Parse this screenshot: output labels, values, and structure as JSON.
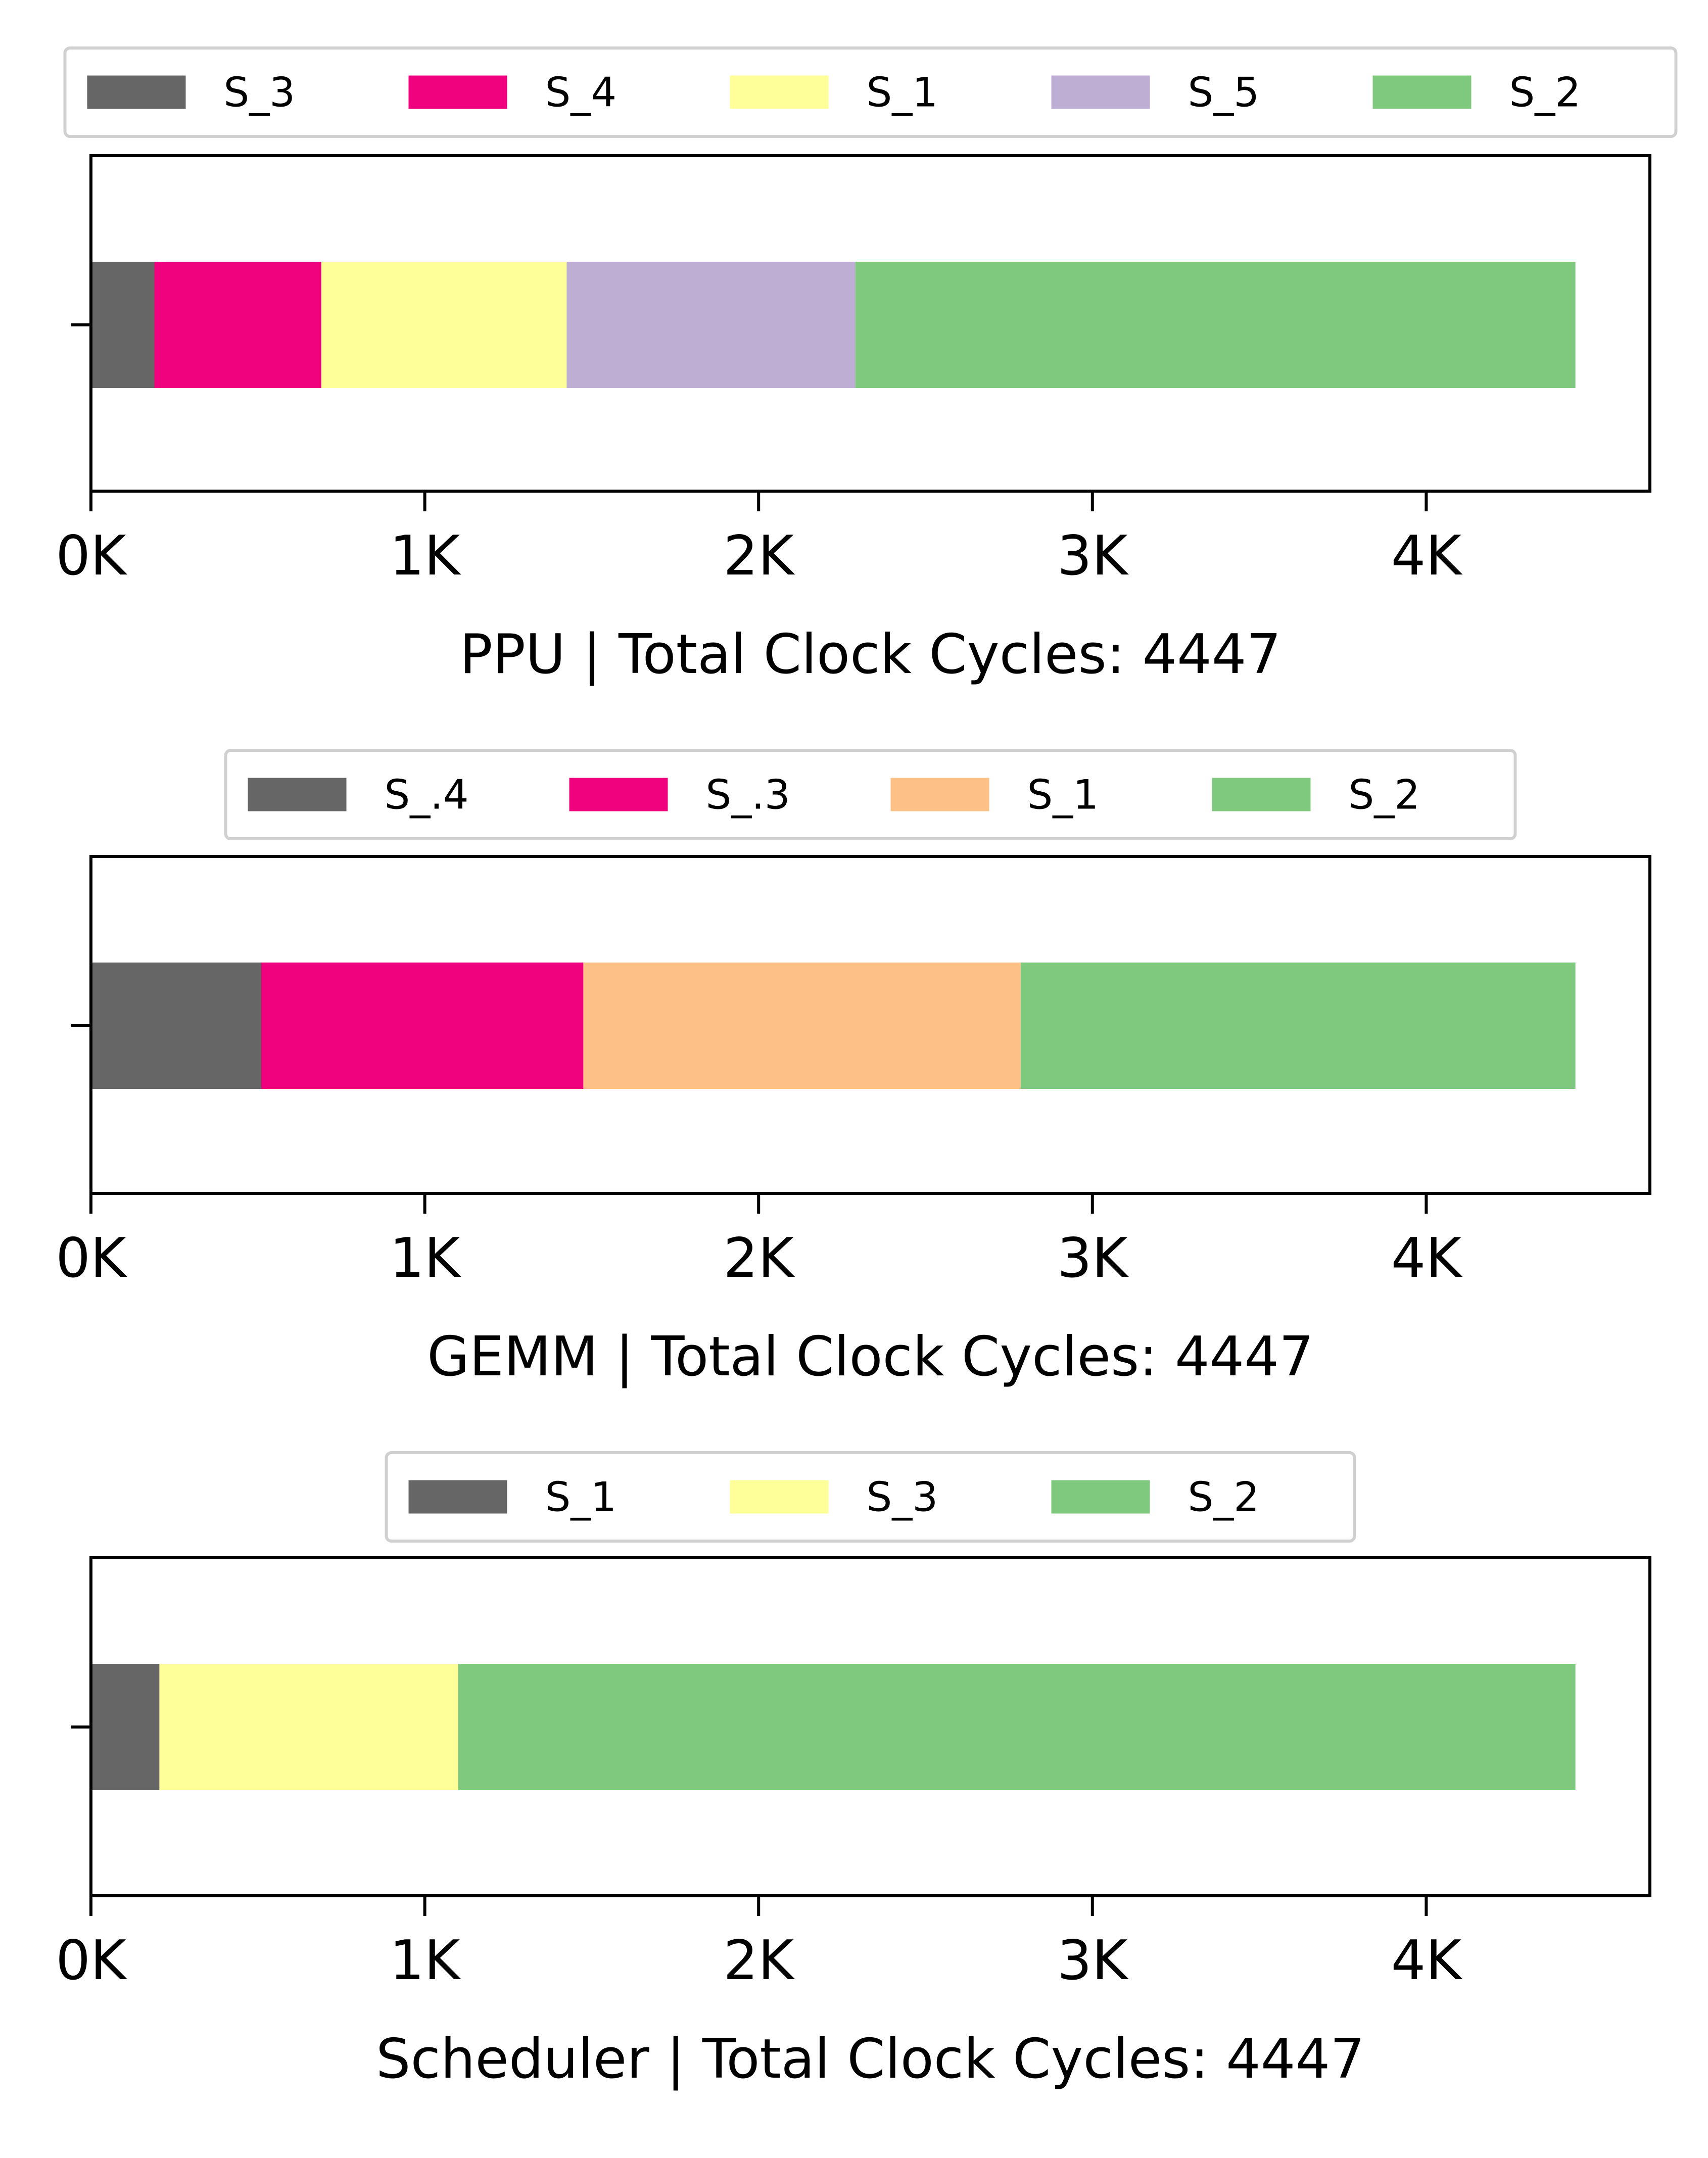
{
  "chart_data": [
    {
      "type": "bar",
      "orientation": "horizontal",
      "stacked": true,
      "xlabel": "PPU | Total Clock Cycles: 4447",
      "xlim": [
        0,
        4670
      ],
      "xticks": [
        0,
        1000,
        2000,
        3000,
        4000
      ],
      "xtick_labels": [
        "0K",
        "1K",
        "2K",
        "3K",
        "4K"
      ],
      "grid": false,
      "legend_placement": "top-center",
      "series": [
        {
          "name": "S_3",
          "value": 190,
          "color": "#666666"
        },
        {
          "name": "S_4",
          "value": 500,
          "color": "#f0027f"
        },
        {
          "name": "S_1",
          "value": 735,
          "color": "#ffff99"
        },
        {
          "name": "S_5",
          "value": 865,
          "color": "#beaed4"
        },
        {
          "name": "S_2",
          "value": 2157,
          "color": "#7fc97f"
        }
      ]
    },
    {
      "type": "bar",
      "orientation": "horizontal",
      "stacked": true,
      "xlabel": "GEMM | Total Clock Cycles: 4447",
      "xlim": [
        0,
        4670
      ],
      "xticks": [
        0,
        1000,
        2000,
        3000,
        4000
      ],
      "xtick_labels": [
        "0K",
        "1K",
        "2K",
        "3K",
        "4K"
      ],
      "grid": false,
      "legend_placement": "top-center",
      "series": [
        {
          "name": "S_.4",
          "value": 510,
          "color": "#666666"
        },
        {
          "name": "S_.3",
          "value": 965,
          "color": "#f0027f"
        },
        {
          "name": "S_1",
          "value": 1310,
          "color": "#fdc086"
        },
        {
          "name": "S_2",
          "value": 1662,
          "color": "#7fc97f"
        }
      ]
    },
    {
      "type": "bar",
      "orientation": "horizontal",
      "stacked": true,
      "xlabel": "Scheduler | Total Clock Cycles: 4447",
      "xlim": [
        0,
        4670
      ],
      "xticks": [
        0,
        1000,
        2000,
        3000,
        4000
      ],
      "xtick_labels": [
        "0K",
        "1K",
        "2K",
        "3K",
        "4K"
      ],
      "grid": false,
      "legend_placement": "top-center",
      "series": [
        {
          "name": "S_1",
          "value": 205,
          "color": "#666666"
        },
        {
          "name": "S_3",
          "value": 895,
          "color": "#ffff99"
        },
        {
          "name": "S_2",
          "value": 3347,
          "color": "#7fc97f"
        }
      ]
    }
  ]
}
